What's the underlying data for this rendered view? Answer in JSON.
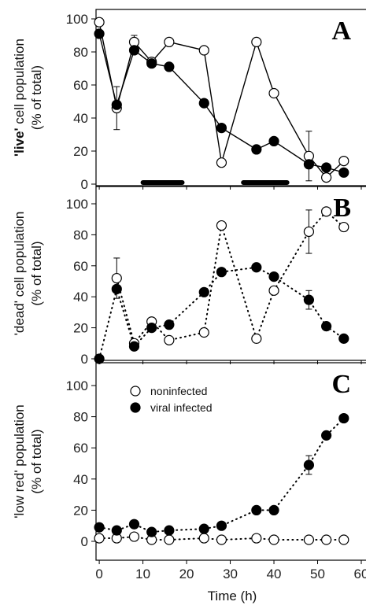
{
  "chart_data": {
    "type": "scatter",
    "x_label": "Time (h)",
    "x_ticks": [
      0,
      10,
      20,
      30,
      40,
      50,
      60
    ],
    "xlim": [
      -2,
      60
    ],
    "legend": {
      "position": "top-left of panel C",
      "entries": [
        {
          "series": "noninfected",
          "label": "noninfected",
          "marker": "open-circle"
        },
        {
          "series": "viral infected",
          "label": "viral infected",
          "marker": "filled-circle"
        }
      ]
    },
    "panels": [
      {
        "letter": "A",
        "ylabel_parts": [
          "'live'",
          " cell population",
          "(% of total)"
        ],
        "ylim": [
          0,
          100
        ],
        "y_ticks": [
          0,
          20,
          40,
          60,
          80,
          100
        ],
        "connector": "solid",
        "dark_periods": [
          [
            10,
            19
          ],
          [
            33,
            43
          ]
        ],
        "series": [
          {
            "name": "noninfected",
            "marker": "open-circle",
            "points": [
              [
                0,
                98
              ],
              [
                4,
                46
              ],
              [
                8,
                86
              ],
              [
                12,
                74
              ],
              [
                16,
                86
              ],
              [
                24,
                81
              ],
              [
                28,
                13
              ],
              [
                36,
                86
              ],
              [
                40,
                55
              ],
              [
                48,
                17
              ],
              [
                52,
                4
              ],
              [
                56,
                14
              ]
            ],
            "errors": [
              [
                4,
                13
              ],
              [
                8,
                4
              ],
              [
                48,
                15
              ]
            ]
          },
          {
            "name": "viral infected",
            "marker": "filled-circle",
            "points": [
              [
                0,
                91
              ],
              [
                4,
                48
              ],
              [
                8,
                81
              ],
              [
                12,
                73
              ],
              [
                16,
                71
              ],
              [
                24,
                49
              ],
              [
                28,
                34
              ],
              [
                36,
                21
              ],
              [
                40,
                26
              ],
              [
                48,
                12
              ],
              [
                52,
                10
              ],
              [
                56,
                7
              ]
            ],
            "errors": []
          }
        ]
      },
      {
        "letter": "B",
        "ylabel_parts": [
          "'dead' cell population",
          "(% of total)"
        ],
        "ylim": [
          0,
          100
        ],
        "y_ticks": [
          0,
          20,
          40,
          60,
          80,
          100
        ],
        "connector": "dotted",
        "dark_periods": [],
        "series": [
          {
            "name": "noninfected",
            "marker": "open-circle",
            "points": [
              [
                4,
                52
              ],
              [
                8,
                10
              ],
              [
                12,
                24
              ],
              [
                16,
                12
              ],
              [
                24,
                17
              ],
              [
                28,
                86
              ],
              [
                36,
                13
              ],
              [
                40,
                44
              ],
              [
                48,
                82
              ],
              [
                52,
                95
              ],
              [
                56,
                85
              ]
            ],
            "errors": [
              [
                4,
                13
              ],
              [
                48,
                14
              ]
            ]
          },
          {
            "name": "viral infected",
            "marker": "filled-circle",
            "points": [
              [
                0,
                0
              ],
              [
                4,
                45
              ],
              [
                8,
                8
              ],
              [
                12,
                20
              ],
              [
                16,
                22
              ],
              [
                24,
                43
              ],
              [
                28,
                56
              ],
              [
                36,
                59
              ],
              [
                40,
                53
              ],
              [
                48,
                38
              ],
              [
                52,
                21
              ],
              [
                56,
                13
              ]
            ],
            "errors": [
              [
                48,
                6
              ]
            ]
          }
        ]
      },
      {
        "letter": "C",
        "ylabel_parts": [
          "'low red' population",
          "(% of total)"
        ],
        "ylim": [
          0,
          100
        ],
        "y_ticks": [
          0,
          20,
          40,
          60,
          80,
          100
        ],
        "connector": "dotted",
        "dark_periods": [],
        "series": [
          {
            "name": "noninfected",
            "marker": "open-circle",
            "points": [
              [
                0,
                2
              ],
              [
                4,
                2
              ],
              [
                8,
                3
              ],
              [
                12,
                1
              ],
              [
                16,
                1
              ],
              [
                24,
                2
              ],
              [
                28,
                1
              ],
              [
                36,
                2
              ],
              [
                40,
                1
              ],
              [
                48,
                1
              ],
              [
                52,
                1
              ],
              [
                56,
                1
              ]
            ],
            "errors": []
          },
          {
            "name": "viral infected",
            "marker": "filled-circle",
            "points": [
              [
                0,
                9
              ],
              [
                4,
                7
              ],
              [
                8,
                11
              ],
              [
                12,
                6
              ],
              [
                16,
                7
              ],
              [
                24,
                8
              ],
              [
                28,
                10
              ],
              [
                36,
                20
              ],
              [
                40,
                20
              ],
              [
                48,
                49
              ],
              [
                52,
                68
              ],
              [
                56,
                79
              ]
            ],
            "errors": [
              [
                48,
                6
              ]
            ]
          }
        ]
      }
    ]
  }
}
